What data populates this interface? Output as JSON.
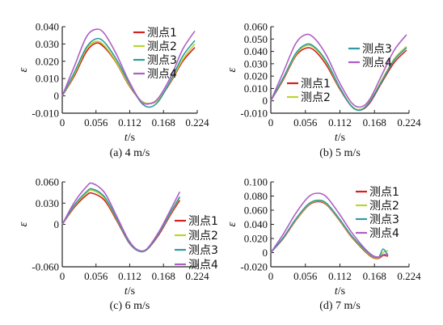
{
  "colors": {
    "测点1": "#d42020",
    "测点2": "#b9d532",
    "测点3": "#2f9aa3",
    "测点4": "#b05ec4"
  },
  "chart_data": [
    {
      "type": "line",
      "caption": "(a) 4 m/s",
      "xlabel_var": "t",
      "xlabel_unit": "/s",
      "ylabel": "ε",
      "xlim": [
        0,
        0.224
      ],
      "ylim": [
        -0.01,
        0.04
      ],
      "xticks": [
        "0",
        "0.056",
        "0.112",
        "0.168",
        "0.224"
      ],
      "yticks": [
        "-0.010",
        "0",
        "0.010",
        "0.020",
        "0.030",
        "0.040"
      ],
      "legend_position": "top-right",
      "series": [
        {
          "name": "测点1",
          "x": [
            0,
            0.02,
            0.04,
            0.056,
            0.07,
            0.09,
            0.11,
            0.13,
            0.145,
            0.16,
            0.18,
            0.2,
            0.22
          ],
          "y": [
            0,
            0.0115,
            0.0255,
            0.0305,
            0.028,
            0.019,
            0.0065,
            -0.0025,
            -0.0045,
            -0.002,
            0.008,
            0.02,
            0.028
          ]
        },
        {
          "name": "测点2",
          "x": [
            0,
            0.02,
            0.04,
            0.056,
            0.07,
            0.09,
            0.11,
            0.13,
            0.145,
            0.16,
            0.18,
            0.2,
            0.22
          ],
          "y": [
            0,
            0.0125,
            0.027,
            0.0315,
            0.029,
            0.0195,
            0.007,
            -0.0025,
            -0.0045,
            -0.002,
            0.0085,
            0.021,
            0.03
          ]
        },
        {
          "name": "测点3",
          "x": [
            0,
            0.02,
            0.04,
            0.056,
            0.07,
            0.09,
            0.11,
            0.13,
            0.145,
            0.16,
            0.18,
            0.2,
            0.22
          ],
          "y": [
            0,
            0.0135,
            0.028,
            0.033,
            0.031,
            0.021,
            0.008,
            -0.0035,
            -0.0065,
            -0.003,
            0.009,
            0.023,
            0.032
          ]
        },
        {
          "name": "测点4",
          "x": [
            0,
            0.02,
            0.04,
            0.056,
            0.07,
            0.09,
            0.11,
            0.13,
            0.145,
            0.16,
            0.18,
            0.2,
            0.22
          ],
          "y": [
            0,
            0.017,
            0.034,
            0.0385,
            0.036,
            0.024,
            0.009,
            -0.003,
            -0.0045,
            -0.001,
            0.011,
            0.027,
            0.0375
          ]
        }
      ]
    },
    {
      "type": "line",
      "caption": "(b) 5 m/s",
      "xlabel_var": "t",
      "xlabel_unit": "/s",
      "ylabel": "ε",
      "xlim": [
        0,
        0.224
      ],
      "ylim": [
        -0.01,
        0.06
      ],
      "xticks": [
        "0",
        "0.056",
        "0.112",
        "0.168",
        "0.224"
      ],
      "yticks": [
        "-0.010",
        "0",
        "0.010",
        "0.020",
        "0.030",
        "0.040",
        "0.050",
        "0.060"
      ],
      "legend_position": "split",
      "series": [
        {
          "name": "测点1",
          "x": [
            0,
            0.02,
            0.04,
            0.056,
            0.07,
            0.09,
            0.11,
            0.13,
            0.145,
            0.16,
            0.18,
            0.2,
            0.22
          ],
          "y": [
            0,
            0.017,
            0.036,
            0.0425,
            0.041,
            0.029,
            0.011,
            -0.004,
            -0.0075,
            -0.002,
            0.015,
            0.031,
            0.041
          ]
        },
        {
          "name": "测点2",
          "x": [
            0,
            0.02,
            0.04,
            0.056,
            0.07,
            0.09,
            0.11,
            0.13,
            0.145,
            0.16,
            0.18,
            0.2,
            0.22
          ],
          "y": [
            0,
            0.018,
            0.037,
            0.0445,
            0.043,
            0.031,
            0.012,
            -0.0035,
            -0.007,
            -0.001,
            0.017,
            0.034,
            0.044
          ]
        },
        {
          "name": "测点3",
          "x": [
            0,
            0.02,
            0.04,
            0.056,
            0.07,
            0.09,
            0.11,
            0.13,
            0.145,
            0.16,
            0.18,
            0.2,
            0.22
          ],
          "y": [
            0,
            0.0185,
            0.038,
            0.0455,
            0.044,
            0.032,
            0.0125,
            -0.004,
            -0.0075,
            -0.001,
            0.016,
            0.033,
            0.043
          ]
        },
        {
          "name": "测点4",
          "x": [
            0,
            0.02,
            0.04,
            0.056,
            0.07,
            0.09,
            0.11,
            0.13,
            0.145,
            0.16,
            0.18,
            0.2,
            0.22
          ],
          "y": [
            0,
            0.023,
            0.046,
            0.0535,
            0.051,
            0.037,
            0.016,
            -0.001,
            -0.005,
            0.001,
            0.021,
            0.041,
            0.0535
          ]
        }
      ]
    },
    {
      "type": "line",
      "caption": "(c) 6 m/s",
      "xlabel_var": "t",
      "xlabel_unit": "/s",
      "ylabel": "ε",
      "xlim": [
        0,
        0.224
      ],
      "ylim": [
        -0.06,
        0.06
      ],
      "xticks": [
        "0",
        "0.056",
        "0.112",
        "0.168",
        "0.224"
      ],
      "yticks": [
        "-0.060",
        "0",
        "0.030",
        "0.060"
      ],
      "legend_position": "bottom-right",
      "series": [
        {
          "name": "测点1",
          "x": [
            0,
            0.02,
            0.04,
            0.05,
            0.07,
            0.09,
            0.11,
            0.125,
            0.14,
            0.16,
            0.18,
            0.195
          ],
          "y": [
            0,
            0.024,
            0.041,
            0.044,
            0.034,
            0.006,
            -0.025,
            -0.037,
            -0.036,
            -0.015,
            0.014,
            0.034
          ]
        },
        {
          "name": "测点2",
          "x": [
            0,
            0.02,
            0.04,
            0.05,
            0.07,
            0.09,
            0.11,
            0.125,
            0.14,
            0.16,
            0.18,
            0.195
          ],
          "y": [
            0,
            0.026,
            0.044,
            0.048,
            0.037,
            0.008,
            -0.024,
            -0.036,
            -0.035,
            -0.013,
            0.016,
            0.038
          ]
        },
        {
          "name": "测点3",
          "x": [
            0,
            0.02,
            0.04,
            0.05,
            0.07,
            0.09,
            0.11,
            0.125,
            0.14,
            0.16,
            0.18,
            0.195
          ],
          "y": [
            0,
            0.027,
            0.046,
            0.05,
            0.039,
            0.009,
            -0.024,
            -0.037,
            -0.036,
            -0.013,
            0.017,
            0.039
          ]
        },
        {
          "name": "测点4",
          "x": [
            0,
            0.02,
            0.04,
            0.05,
            0.07,
            0.09,
            0.11,
            0.125,
            0.14,
            0.16,
            0.18,
            0.195
          ],
          "y": [
            0,
            0.031,
            0.053,
            0.058,
            0.045,
            0.012,
            -0.022,
            -0.036,
            -0.035,
            -0.011,
            0.021,
            0.046
          ]
        }
      ]
    },
    {
      "type": "line",
      "caption": "(d) 7 m/s",
      "xlabel_var": "t",
      "xlabel_unit": "/s",
      "ylabel": "ε",
      "xlim": [
        0,
        0.224
      ],
      "ylim": [
        -0.02,
        0.1
      ],
      "xticks": [
        "0",
        "0.056",
        "0.112",
        "0.168",
        "0.224"
      ],
      "yticks": [
        "-0.020",
        "0",
        "0.020",
        "0.040",
        "0.060",
        "0.080",
        "0.100"
      ],
      "legend_position": "top-right",
      "series": [
        {
          "name": "测点1",
          "x": [
            0,
            0.02,
            0.04,
            0.06,
            0.075,
            0.09,
            0.11,
            0.13,
            0.15,
            0.165,
            0.175,
            0.182,
            0.19
          ],
          "y": [
            0,
            0.02,
            0.045,
            0.066,
            0.072,
            0.068,
            0.047,
            0.023,
            0.004,
            -0.007,
            -0.008,
            -0.004,
            -0.005
          ]
        },
        {
          "name": "测点2",
          "x": [
            0,
            0.02,
            0.04,
            0.06,
            0.075,
            0.09,
            0.11,
            0.13,
            0.15,
            0.165,
            0.175,
            0.182,
            0.19
          ],
          "y": [
            0,
            0.021,
            0.046,
            0.067,
            0.073,
            0.069,
            0.048,
            0.024,
            0.005,
            -0.006,
            -0.007,
            0.0,
            0.003
          ]
        },
        {
          "name": "测点3",
          "x": [
            0,
            0.02,
            0.04,
            0.06,
            0.075,
            0.09,
            0.11,
            0.13,
            0.15,
            0.165,
            0.175,
            0.182,
            0.19
          ],
          "y": [
            0,
            0.021,
            0.047,
            0.068,
            0.074,
            0.07,
            0.049,
            0.025,
            0.006,
            -0.005,
            -0.006,
            0.005,
            -0.004
          ]
        },
        {
          "name": "测点4",
          "x": [
            0,
            0.02,
            0.04,
            0.06,
            0.075,
            0.09,
            0.11,
            0.13,
            0.15,
            0.165,
            0.175,
            0.182,
            0.19
          ],
          "y": [
            0,
            0.026,
            0.055,
            0.078,
            0.084,
            0.079,
            0.056,
            0.03,
            0.008,
            -0.004,
            -0.006,
            -0.003,
            -0.002
          ]
        }
      ]
    }
  ]
}
